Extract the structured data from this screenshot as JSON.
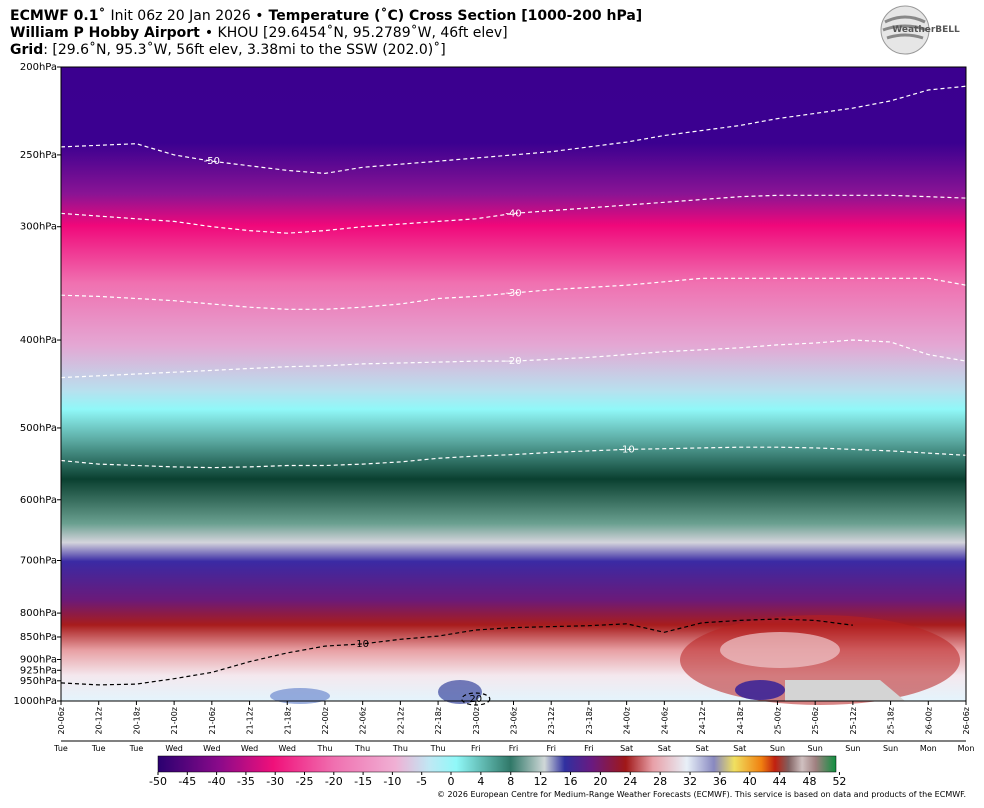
{
  "header": {
    "model": "ECMWF 0.1˚",
    "init": "Init 06z 20 Jan 2026 •",
    "title": "Temperature (˚C) Cross Section [1000-200 hPa]",
    "station": "William P Hobby Airport",
    "station_info": "• KHOU [29.6454˚N, 95.2789˚W, 46ft elev]",
    "grid_label": "Grid",
    "grid_info": ": [29.6˚N, 95.3˚W, 56ft elev, 3.38mi to the SSW (202.0)˚]"
  },
  "logo": "WeatherBELL",
  "chart_data": {
    "type": "contour",
    "categories": [
      "20-06z",
      "20-12z",
      "20-18z",
      "21-00z",
      "21-06z",
      "21-12z",
      "21-18z",
      "22-00z",
      "22-06z",
      "22-12z",
      "22-18z",
      "23-00z",
      "23-06z",
      "23-12z",
      "23-18z",
      "24-00z",
      "24-06z",
      "24-12z",
      "24-18z",
      "25-00z",
      "25-06z",
      "25-12z",
      "25-18z",
      "26-00z",
      "26-06z"
    ],
    "days": [
      "Tue",
      "Tue",
      "Tue",
      "Wed",
      "Wed",
      "Wed",
      "Wed",
      "Thu",
      "Thu",
      "Thu",
      "Thu",
      "Fri",
      "Fri",
      "Fri",
      "Fri",
      "Sat",
      "Sat",
      "Sat",
      "Sat",
      "Sun",
      "Sun",
      "Sun",
      "Sun",
      "Mon",
      "Mon"
    ],
    "log_y": true,
    "ylim": [
      1000,
      200
    ],
    "yticks": [
      {
        "value": 200,
        "label": "200hPa"
      },
      {
        "value": 250,
        "label": "250hPa"
      },
      {
        "value": 300,
        "label": "300hPa"
      },
      {
        "value": 400,
        "label": "400hPa"
      },
      {
        "value": 500,
        "label": "500hPa"
      },
      {
        "value": 600,
        "label": "600hPa"
      },
      {
        "value": 700,
        "label": "700hPa"
      },
      {
        "value": 800,
        "label": "800hPa"
      },
      {
        "value": 850,
        "label": "850hPa"
      },
      {
        "value": 900,
        "label": "900hPa"
      },
      {
        "value": 925,
        "label": "925hPa"
      },
      {
        "value": 950,
        "label": "950hPa"
      },
      {
        "value": 1000,
        "label": "1000hPa"
      }
    ],
    "contours": [
      {
        "level": -50,
        "color": "#ffffff",
        "values": [
          245,
          244,
          243,
          250,
          254,
          257,
          260,
          262,
          258,
          256,
          254,
          252,
          250,
          248,
          245,
          242,
          238,
          235,
          232,
          228,
          225,
          222,
          218,
          212,
          210
        ]
      },
      {
        "level": -40,
        "color": "#ffffff",
        "values": [
          290,
          292,
          294,
          296,
          300,
          303,
          305,
          303,
          300,
          298,
          296,
          294,
          290,
          288,
          286,
          284,
          282,
          280,
          278,
          277,
          277,
          277,
          277,
          278,
          279
        ]
      },
      {
        "level": -30,
        "color": "#ffffff",
        "values": [
          357,
          358,
          360,
          362,
          365,
          368,
          370,
          370,
          368,
          365,
          360,
          358,
          355,
          352,
          350,
          348,
          345,
          342,
          342,
          342,
          342,
          342,
          342,
          342,
          348
        ]
      },
      {
        "level": -20,
        "color": "#ffffff",
        "values": [
          440,
          438,
          436,
          434,
          432,
          430,
          428,
          427,
          425,
          424,
          423,
          422,
          422,
          420,
          418,
          415,
          412,
          410,
          408,
          405,
          403,
          400,
          402,
          415,
          422
        ]
      },
      {
        "level": -10,
        "color": "#ffffff",
        "values": [
          543,
          548,
          550,
          552,
          553,
          552,
          550,
          550,
          548,
          545,
          540,
          537,
          535,
          532,
          530,
          528,
          527,
          526,
          525,
          525,
          526,
          528,
          530,
          533,
          536
        ]
      },
      {
        "level": 10,
        "color": "#000000",
        "values": [
          955,
          960,
          958,
          945,
          930,
          905,
          885,
          870,
          865,
          855,
          848,
          835,
          830,
          828,
          826,
          822,
          840,
          820,
          815,
          812,
          815,
          825,
          null,
          null,
          null
        ]
      },
      {
        "level": 20,
        "color": "#000000",
        "values": [
          null,
          null,
          null,
          null,
          null,
          null,
          null,
          null,
          null,
          null,
          null,
          995,
          null,
          null,
          null,
          null,
          null,
          null,
          null,
          null,
          null,
          null,
          null,
          null,
          null
        ]
      }
    ],
    "colorbar": {
      "ticks": [
        -50,
        -45,
        -40,
        -35,
        -30,
        -25,
        -20,
        -15,
        -10,
        -5,
        0,
        4,
        8,
        12,
        16,
        20,
        24,
        28,
        32,
        36,
        40,
        44,
        48,
        52
      ]
    }
  },
  "footer": "© 2026 European Centre for Medium-Range Weather Forecasts (ECMWF). This service is based on data and products of the ECMWF."
}
